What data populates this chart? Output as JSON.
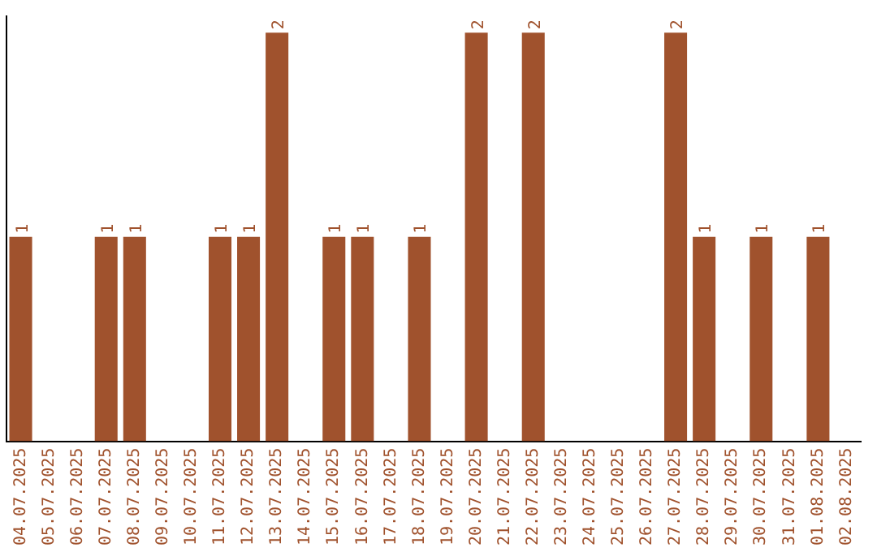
{
  "chart_data": {
    "type": "bar",
    "categories": [
      "04.07.2025",
      "05.07.2025",
      "06.07.2025",
      "07.07.2025",
      "08.07.2025",
      "09.07.2025",
      "10.07.2025",
      "11.07.2025",
      "12.07.2025",
      "13.07.2025",
      "14.07.2025",
      "15.07.2025",
      "16.07.2025",
      "17.07.2025",
      "18.07.2025",
      "19.07.2025",
      "20.07.2025",
      "21.07.2025",
      "22.07.2025",
      "23.07.2025",
      "24.07.2025",
      "25.07.2025",
      "26.07.2025",
      "27.07.2025",
      "28.07.2025",
      "29.07.2025",
      "30.07.2025",
      "31.07.2025",
      "01.08.2025",
      "02.08.2025"
    ],
    "values": [
      1,
      null,
      null,
      1,
      1,
      null,
      null,
      1,
      1,
      2,
      null,
      1,
      1,
      null,
      1,
      null,
      2,
      null,
      2,
      null,
      null,
      null,
      null,
      2,
      1,
      null,
      1,
      null,
      1,
      null
    ],
    "color": "#a0522d",
    "ylim": [
      0,
      2.08
    ],
    "tick_labels": "x",
    "data_labels": true,
    "grid": false,
    "legend": false
  }
}
